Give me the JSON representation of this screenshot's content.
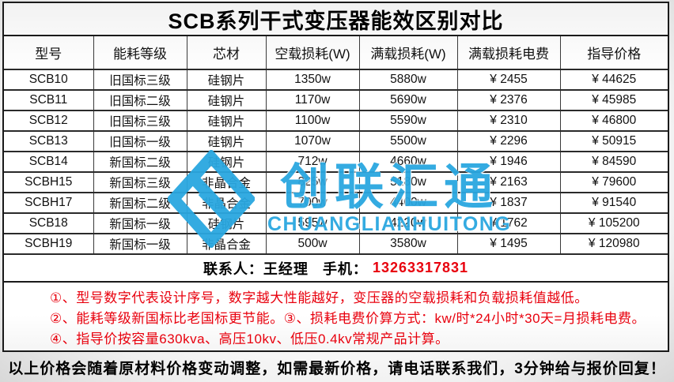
{
  "title": "SCB系列干式变压器能效区别对比",
  "table": {
    "headers": [
      "型号",
      "能耗等级",
      "芯材",
      "空载损耗(W)",
      "满载损耗(W)",
      "满载损耗电费",
      "指导价格"
    ],
    "rows": [
      [
        "SCB10",
        "旧国标三级",
        "硅钢片",
        "1350w",
        "5880w",
        "¥ 2455",
        "¥ 44625"
      ],
      [
        "SCB11",
        "旧国标二级",
        "硅钢片",
        "1170w",
        "5690w",
        "¥ 2376",
        "¥ 45985"
      ],
      [
        "SCB12",
        "旧国标三级",
        "硅钢片",
        "1100w",
        "5590w",
        "¥ 2310",
        "¥ 46800"
      ],
      [
        "SCB13",
        "旧国标一级",
        "硅钢片",
        "1070w",
        "5500w",
        "¥ 2296",
        "¥ 50915"
      ],
      [
        "SCB14",
        "新国标二级",
        "硅钢片",
        "712w",
        "4660w",
        "¥ 1946",
        "¥ 84590"
      ],
      [
        "SCBH15",
        "新国标三级",
        "非晶合金",
        "825w",
        "5180w",
        "¥ 2163",
        "¥ 79600"
      ],
      [
        "SCBH17",
        "新国标二级",
        "非晶合金",
        "700w",
        "4400w",
        "¥ 1837",
        "¥ 91540"
      ],
      [
        "SCB18",
        "新国标一级",
        "硅钢片",
        "595w",
        "4220w",
        "¥ 1762",
        "¥ 105200"
      ],
      [
        "SCBH19",
        "新国标一级",
        "非晶合金",
        "500w",
        "3580w",
        "¥ 1495",
        "¥ 120980"
      ]
    ]
  },
  "contact": {
    "name_label": "联系人：王经理",
    "phone_label": "手机：",
    "phone": "13263317831"
  },
  "notes": [
    "①、型号数字代表设计序号，数字越大性能越好，变压器的空载损耗和负载损耗值越低。",
    "②、能耗等级新国标比老国标更节能。③、损耗电费价算方式：kw/时*24小时*30天=月损耗电费。",
    "④、指导价按容量630kva、高压10kv、低压0.4kv常规产品计算。"
  ],
  "watermark": {
    "brand_cn": "创联汇通",
    "brand_en": "CHUANGLIANHUITONG",
    "color": "#2aa7e0"
  },
  "footer": "以上价格会随着原材料价格变动调整，如需最新价格，请电话联系我们，3分钟给与报价回复！"
}
